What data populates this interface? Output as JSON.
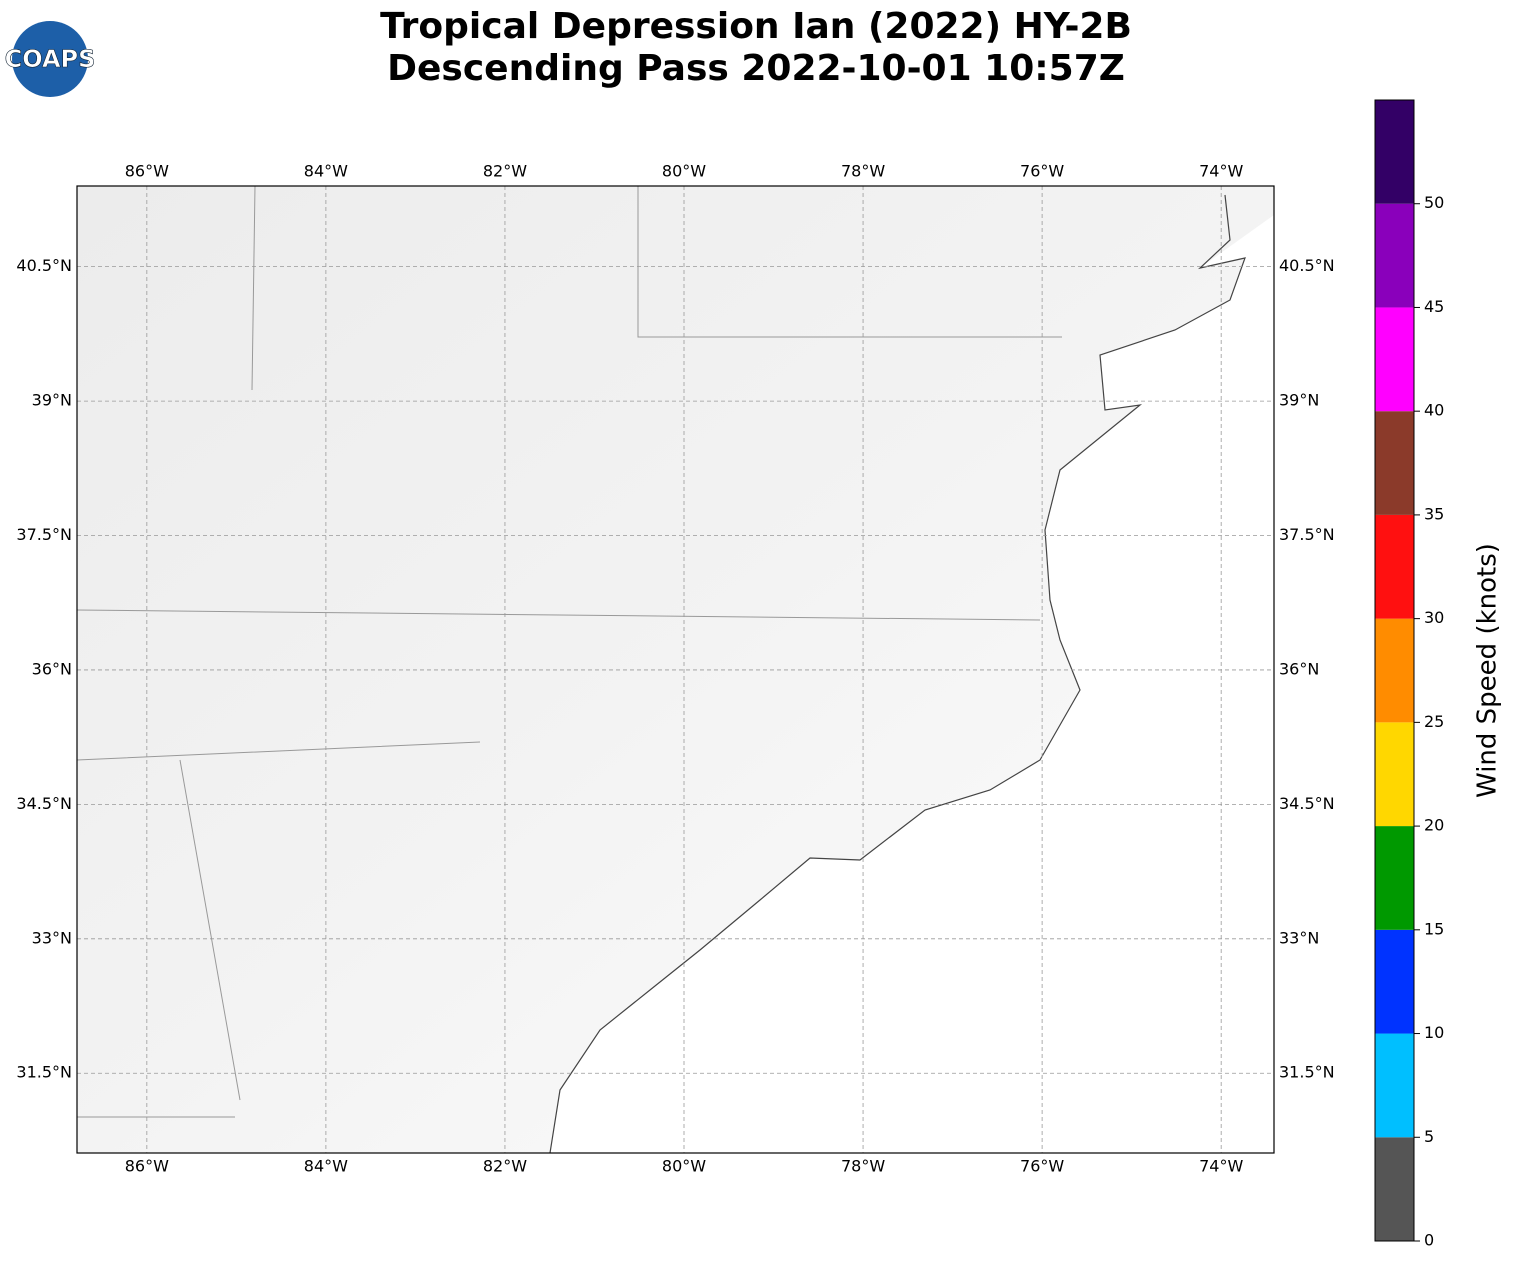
{
  "chart_data": {
    "type": "map",
    "title": [
      "Tropical Depression Ian (2022) HY-2B",
      "Descending Pass 2022-10-01 10:57Z"
    ],
    "logo": "COAPS",
    "xlim": [
      -86.78,
      -73.41
    ],
    "ylim": [
      30.61,
      41.4
    ],
    "xticks": [
      {
        "value": -86,
        "label": "86°W"
      },
      {
        "value": -84,
        "label": "84°W"
      },
      {
        "value": -82,
        "label": "82°W"
      },
      {
        "value": -80,
        "label": "80°W"
      },
      {
        "value": -78,
        "label": "78°W"
      },
      {
        "value": -76,
        "label": "76°W"
      },
      {
        "value": -74,
        "label": "74°W"
      }
    ],
    "yticks": [
      {
        "value": 31.5,
        "label": "31.5°N"
      },
      {
        "value": 33,
        "label": "33°N"
      },
      {
        "value": 34.5,
        "label": "34.5°N"
      },
      {
        "value": 36,
        "label": "36°N"
      },
      {
        "value": 37.5,
        "label": "37.5°N"
      },
      {
        "value": 39,
        "label": "39°N"
      },
      {
        "value": 40.5,
        "label": "40.5°N"
      }
    ],
    "grid": true,
    "colorbar": {
      "label": "Wind Speed (knots)",
      "bounds": [
        0,
        5,
        10,
        15,
        20,
        25,
        30,
        35,
        40,
        45,
        50,
        55
      ],
      "colors": [
        "#555555",
        "#00bfff",
        "#0033ff",
        "#009900",
        "#ffd700",
        "#ff8c00",
        "#ff1010",
        "#8b3a2a",
        "#ff00ff",
        "#8a00bb",
        "#330066"
      ],
      "ticks": [
        0,
        5,
        10,
        15,
        20,
        25,
        30,
        35,
        40,
        45,
        50
      ]
    }
  }
}
